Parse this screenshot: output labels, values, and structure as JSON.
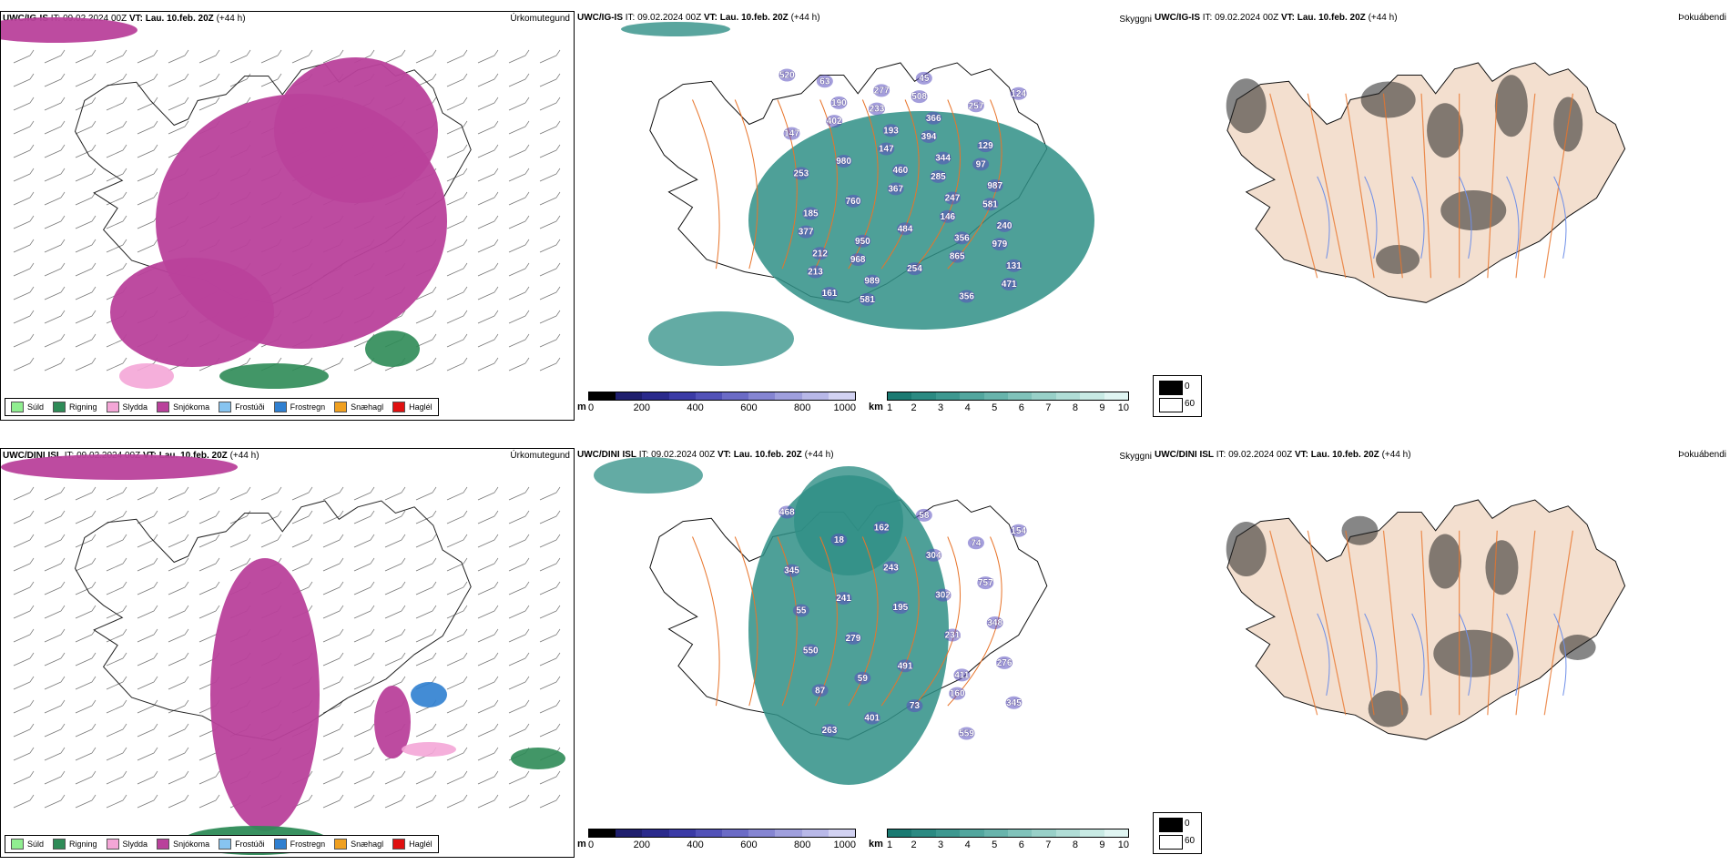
{
  "rows": [
    {
      "model": "UWC/IG-IS",
      "it_label": "IT:",
      "it_value": "09.02.2024 00Z",
      "vt_label": "VT:",
      "vt_value": "Lau. 10.feb. 20Z",
      "lead": "(+44 h)",
      "precip_panel_label": "Úrkomutegund",
      "visibility_panel_label": "Skyggni",
      "fog_panel_label": "Þokuábendi",
      "ceiling_labels": [
        "520",
        "356",
        "460",
        "190",
        "131",
        "247",
        "193",
        "161",
        "240",
        "344",
        "277",
        "212",
        "987",
        "366",
        "989",
        "185",
        "129",
        "45",
        "950",
        "253",
        "257",
        "254",
        "760",
        "147",
        "356",
        "484",
        "980",
        "124",
        "865",
        "367",
        "402",
        "471",
        "146",
        "147",
        "63",
        "979",
        "285",
        "233",
        "213",
        "581",
        "394",
        "581",
        "377",
        "97",
        "508",
        "968"
      ]
    },
    {
      "model": "UWC/DINI ISL",
      "it_label": "IT:",
      "it_value": "09.02.2024 00Z",
      "vt_label": "VT:",
      "vt_value": "Lau. 10.feb. 20Z",
      "lead": "(+44 h)",
      "precip_panel_label": "Úrkomutegund",
      "visibility_panel_label": "Skyggni",
      "fog_panel_label": "Þokuábendi",
      "ceiling_labels": [
        "468",
        "411",
        "195",
        "18",
        "345",
        "231",
        "243",
        "263",
        "276",
        "302",
        "162",
        "87",
        "348",
        "304",
        "401",
        "550",
        "757",
        "58",
        "59",
        "55",
        "74",
        "73",
        "279",
        "345",
        "559",
        "491",
        "241",
        "154",
        "160"
      ]
    }
  ],
  "precip_legend": [
    {
      "label": "Súld",
      "color": "#90ee90"
    },
    {
      "label": "Rigning",
      "color": "#2e8b57"
    },
    {
      "label": "Slydda",
      "color": "#f4a6d7"
    },
    {
      "label": "Snjókoma",
      "color": "#b9419b"
    },
    {
      "label": "Frostúði",
      "color": "#87c4f0"
    },
    {
      "label": "Frostregn",
      "color": "#2f7fd0"
    },
    {
      "label": "Snæhagl",
      "color": "#f0a020"
    },
    {
      "label": "Haglél",
      "color": "#e01010"
    }
  ],
  "ceiling_scale": {
    "unit": "m",
    "ticks": [
      "0",
      "200",
      "400",
      "600",
      "800",
      "1000"
    ],
    "colors": [
      "#000000",
      "#1f1f6e",
      "#2a2a8c",
      "#3b3ba6",
      "#5252b8",
      "#6b6bc6",
      "#8585d2",
      "#9f9fdd",
      "#b8b8e8",
      "#d2d2f2"
    ]
  },
  "visibility_scale": {
    "unit": "km",
    "ticks": [
      "1",
      "2",
      "3",
      "4",
      "5",
      "6",
      "7",
      "8",
      "9",
      "10"
    ],
    "colors": [
      "#1a7a72",
      "#2b8a82",
      "#3d9890",
      "#52a69e",
      "#68b4ac",
      "#80c2ba",
      "#98d0c8",
      "#b0ddd6",
      "#c8eae4",
      "#e0f5f2"
    ]
  },
  "cloud_legend": {
    "ticks": [
      "0",
      "60"
    ],
    "colors": [
      "#000000",
      "#ffffff"
    ]
  },
  "colors": {
    "snow": "#b9419b",
    "rain": "#2e8b57",
    "sleet": "#f4a6d7",
    "freezing": "#2f7fd0",
    "visibility": "#2f8f86",
    "ceiling": "#5a4fc0",
    "land_fog": "#f3dfcf",
    "roads": "#e8742a",
    "rivers": "#6f8fe8"
  }
}
